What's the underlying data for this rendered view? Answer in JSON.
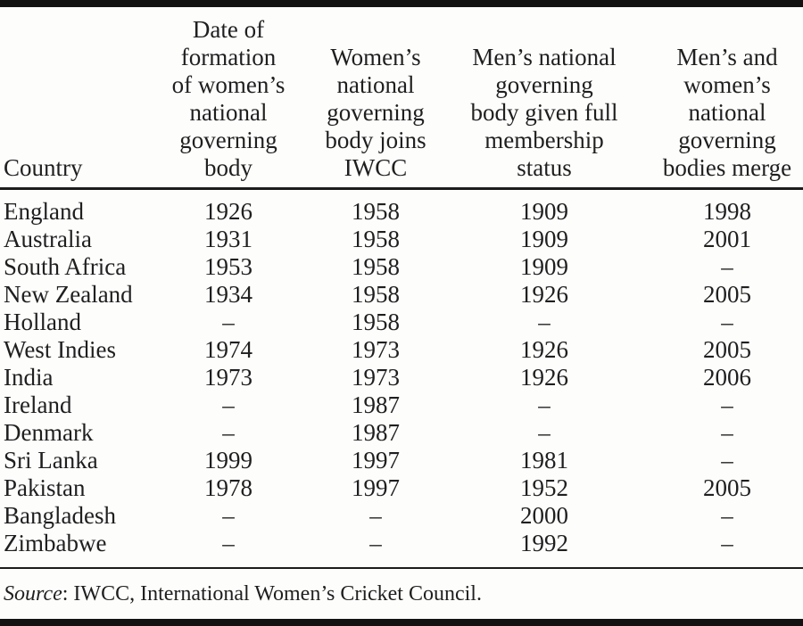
{
  "table": {
    "headers": [
      "Country",
      "Date of\nformation\nof women’s\nnational\ngoverning\nbody",
      "Women’s\nnational\ngoverning\nbody joins\nIWCC",
      "Men’s national\ngoverning\nbody given full\nmembership\nstatus",
      "Men’s and\nwomen’s\nnational\ngoverning\nbodies merge"
    ],
    "rows": [
      [
        "England",
        "1926",
        "1958",
        "1909",
        "1998"
      ],
      [
        "Australia",
        "1931",
        "1958",
        "1909",
        "2001"
      ],
      [
        "South Africa",
        "1953",
        "1958",
        "1909",
        "–"
      ],
      [
        "New Zealand",
        "1934",
        "1958",
        "1926",
        "2005"
      ],
      [
        "Holland",
        "–",
        "1958",
        "–",
        "–"
      ],
      [
        "West Indies",
        "1974",
        "1973",
        "1926",
        "2005"
      ],
      [
        "India",
        "1973",
        "1973",
        "1926",
        "2006"
      ],
      [
        "Ireland",
        "–",
        "1987",
        "–",
        "–"
      ],
      [
        "Denmark",
        "–",
        "1987",
        "–",
        "–"
      ],
      [
        "Sri Lanka",
        "1999",
        "1997",
        "1981",
        "–"
      ],
      [
        "Pakistan",
        "1978",
        "1997",
        "1952",
        "2005"
      ],
      [
        "Bangladesh",
        "–",
        "–",
        "2000",
        "–"
      ],
      [
        "Zimbabwe",
        "–",
        "–",
        "1992",
        "–"
      ]
    ]
  },
  "footer": {
    "source_label": "Source",
    "source_text": ": IWCC, International Women’s Cricket Council."
  },
  "colors": {
    "background": "#fdfdfc",
    "text": "#1f1f1f",
    "rule": "#1c1c1c",
    "bar": "#121212"
  }
}
